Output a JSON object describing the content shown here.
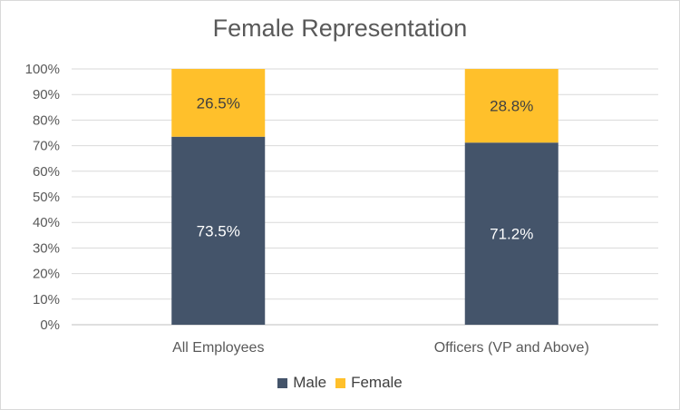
{
  "chart_data": {
    "type": "bar",
    "stacked": true,
    "title": "Female Representation",
    "categories": [
      "All Employees",
      "Officers (VP and Above)"
    ],
    "series": [
      {
        "name": "Male",
        "values": [
          73.5,
          71.2
        ],
        "labels": [
          "73.5%",
          "71.2%"
        ],
        "color": "#44546a"
      },
      {
        "name": "Female",
        "values": [
          26.5,
          28.8
        ],
        "labels": [
          "26.5%",
          "28.8%"
        ],
        "color": "#ffc02b"
      }
    ],
    "ylim": [
      0,
      100
    ],
    "yticks": [
      "0%",
      "10%",
      "20%",
      "30%",
      "40%",
      "50%",
      "60%",
      "70%",
      "80%",
      "90%",
      "100%"
    ],
    "grid": true,
    "legend_position": "bottom"
  }
}
